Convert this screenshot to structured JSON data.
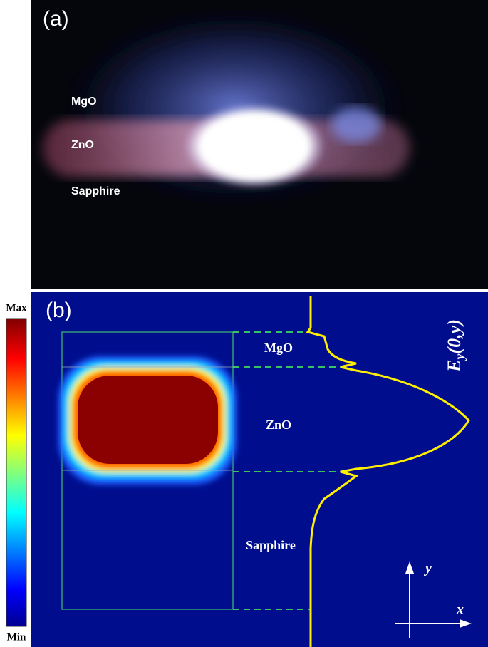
{
  "panel_a": {
    "label": "(a)",
    "layers": [
      "MgO",
      "ZnO",
      "Sapphire"
    ]
  },
  "panel_b": {
    "label": "(b)",
    "colorbar": {
      "max": "Max",
      "min": "Min"
    },
    "layers": [
      "MgO",
      "ZnO",
      "Sapphire"
    ],
    "field_label": {
      "symbol": "E",
      "subscript": "y",
      "argument": "(0,y)"
    },
    "axes": {
      "y": "y",
      "x": "x"
    }
  }
}
